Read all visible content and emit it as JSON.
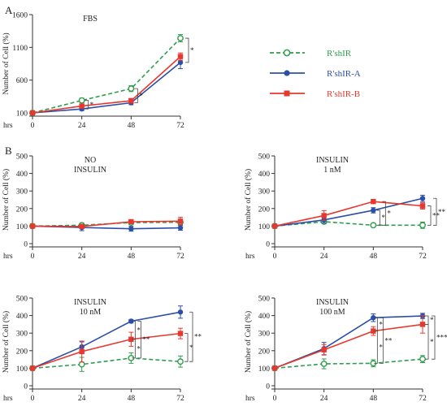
{
  "figure": {
    "panel_labels": [
      "A",
      "B"
    ],
    "legend": [
      {
        "label": "R'shIR",
        "color": "#2e9e4c",
        "dashed": true,
        "marker": "circle-open"
      },
      {
        "label": "R'shIR-A",
        "color": "#2b4fa8",
        "dashed": false,
        "marker": "circle-filled"
      },
      {
        "label": "R'shIR-B",
        "color": "#e8372e",
        "dashed": false,
        "marker": "square-filled"
      }
    ]
  },
  "chart_data": [
    {
      "type": "line",
      "title": [
        "FBS"
      ],
      "xlabel": "hrs",
      "ylabel": "Number of Cell (%)",
      "x": [
        0,
        24,
        48,
        72
      ],
      "xticks": [
        "0",
        "24",
        "48",
        "72"
      ],
      "ylim": [
        100,
        1600
      ],
      "yticks": [
        100,
        600,
        1100,
        1600
      ],
      "series": [
        {
          "name": "R'shIR",
          "values": [
            100,
            290,
            470,
            1240
          ],
          "errors": [
            10,
            35,
            45,
            55
          ]
        },
        {
          "name": "R'shIR-A",
          "values": [
            100,
            160,
            255,
            870
          ],
          "errors": [
            10,
            25,
            30,
            95
          ]
        },
        {
          "name": "R'shIR-B",
          "values": [
            100,
            205,
            285,
            960
          ],
          "errors": [
            10,
            30,
            35,
            55
          ]
        }
      ],
      "significance": [
        {
          "x": 24,
          "label": "*"
        },
        {
          "x": 48,
          "label": "*"
        },
        {
          "x": 72,
          "label": "*"
        }
      ]
    },
    {
      "type": "line",
      "title": [
        "NO",
        "INSULIN"
      ],
      "xlabel": "hrs",
      "ylabel": "Number of Cell (%)",
      "x": [
        0,
        24,
        48,
        72
      ],
      "xticks": [
        "0",
        "24",
        "48",
        "72"
      ],
      "ylim": [
        0,
        500
      ],
      "yticks": [
        0,
        100,
        200,
        300,
        400,
        500
      ],
      "series": [
        {
          "name": "R'shIR",
          "values": [
            100,
            105,
            120,
            122
          ],
          "errors": [
            5,
            12,
            12,
            12
          ]
        },
        {
          "name": "R'shIR-A",
          "values": [
            100,
            92,
            85,
            90
          ],
          "errors": [
            5,
            18,
            14,
            14
          ]
        },
        {
          "name": "R'shIR-B",
          "values": [
            100,
            98,
            125,
            128
          ],
          "errors": [
            5,
            8,
            10,
            22
          ]
        }
      ],
      "significance": []
    },
    {
      "type": "line",
      "title": [
        "INSULIN",
        "1 nM"
      ],
      "xlabel": "hrs",
      "ylabel": "Number of Cell (%)",
      "x": [
        0,
        24,
        48,
        72
      ],
      "xticks": [
        "0",
        "24",
        "48",
        "72"
      ],
      "ylim": [
        0,
        500
      ],
      "yticks": [
        0,
        100,
        200,
        300,
        400,
        500
      ],
      "series": [
        {
          "name": "R'shIR",
          "values": [
            100,
            125,
            105,
            105
          ],
          "errors": [
            5,
            10,
            8,
            18
          ]
        },
        {
          "name": "R'shIR-A",
          "values": [
            100,
            135,
            190,
            258
          ],
          "errors": [
            5,
            18,
            15,
            18
          ]
        },
        {
          "name": "R'shIR-B",
          "values": [
            100,
            160,
            240,
            215
          ],
          "errors": [
            5,
            28,
            10,
            18
          ]
        }
      ],
      "significance": [
        {
          "x": 48,
          "label": "*"
        },
        {
          "x": 48,
          "label": "*"
        },
        {
          "x": 72,
          "label": "**"
        },
        {
          "x": 72,
          "label": "**"
        }
      ]
    },
    {
      "type": "line",
      "title": [
        "INSULIN",
        "10 nM"
      ],
      "xlabel": "hrs",
      "ylabel": "Number of Cell (%)",
      "x": [
        0,
        24,
        48,
        72
      ],
      "xticks": [
        "0",
        "24",
        "48",
        "72"
      ],
      "ylim": [
        0,
        500
      ],
      "yticks": [
        0,
        100,
        200,
        300,
        400,
        500
      ],
      "series": [
        {
          "name": "R'shIR",
          "values": [
            100,
            122,
            158,
            138
          ],
          "errors": [
            5,
            40,
            30,
            32
          ]
        },
        {
          "name": "R'shIR-A",
          "values": [
            100,
            222,
            368,
            420
          ],
          "errors": [
            5,
            28,
            10,
            35
          ]
        },
        {
          "name": "R'shIR-B",
          "values": [
            100,
            195,
            265,
            298
          ],
          "errors": [
            5,
            60,
            40,
            30
          ]
        }
      ],
      "significance": [
        {
          "x": 48,
          "label": "*"
        },
        {
          "x": 48,
          "label": "*"
        },
        {
          "x": 48,
          "label": "**"
        },
        {
          "x": 72,
          "label": "*"
        },
        {
          "x": 72,
          "label": "**"
        }
      ]
    },
    {
      "type": "line",
      "title": [
        "INSULIN",
        "100 nM"
      ],
      "xlabel": "hrs",
      "ylabel": "Number of Cell (%)",
      "x": [
        0,
        24,
        48,
        72
      ],
      "xticks": [
        "0",
        "24",
        "48",
        "72"
      ],
      "ylim": [
        0,
        500
      ],
      "yticks": [
        0,
        100,
        200,
        300,
        400,
        500
      ],
      "series": [
        {
          "name": "R'shIR",
          "values": [
            100,
            125,
            128,
            152
          ],
          "errors": [
            5,
            28,
            20,
            20
          ]
        },
        {
          "name": "R'shIR-A",
          "values": [
            100,
            212,
            388,
            398
          ],
          "errors": [
            5,
            35,
            22,
            15
          ]
        },
        {
          "name": "R'shIR-B",
          "values": [
            100,
            205,
            312,
            350
          ],
          "errors": [
            5,
            30,
            25,
            50
          ]
        }
      ],
      "significance": [
        {
          "x": 48,
          "label": "*"
        },
        {
          "x": 48,
          "label": "*"
        },
        {
          "x": 48,
          "label": "**"
        },
        {
          "x": 72,
          "label": "*"
        },
        {
          "x": 72,
          "label": "*"
        },
        {
          "x": 72,
          "label": "***"
        }
      ]
    }
  ]
}
